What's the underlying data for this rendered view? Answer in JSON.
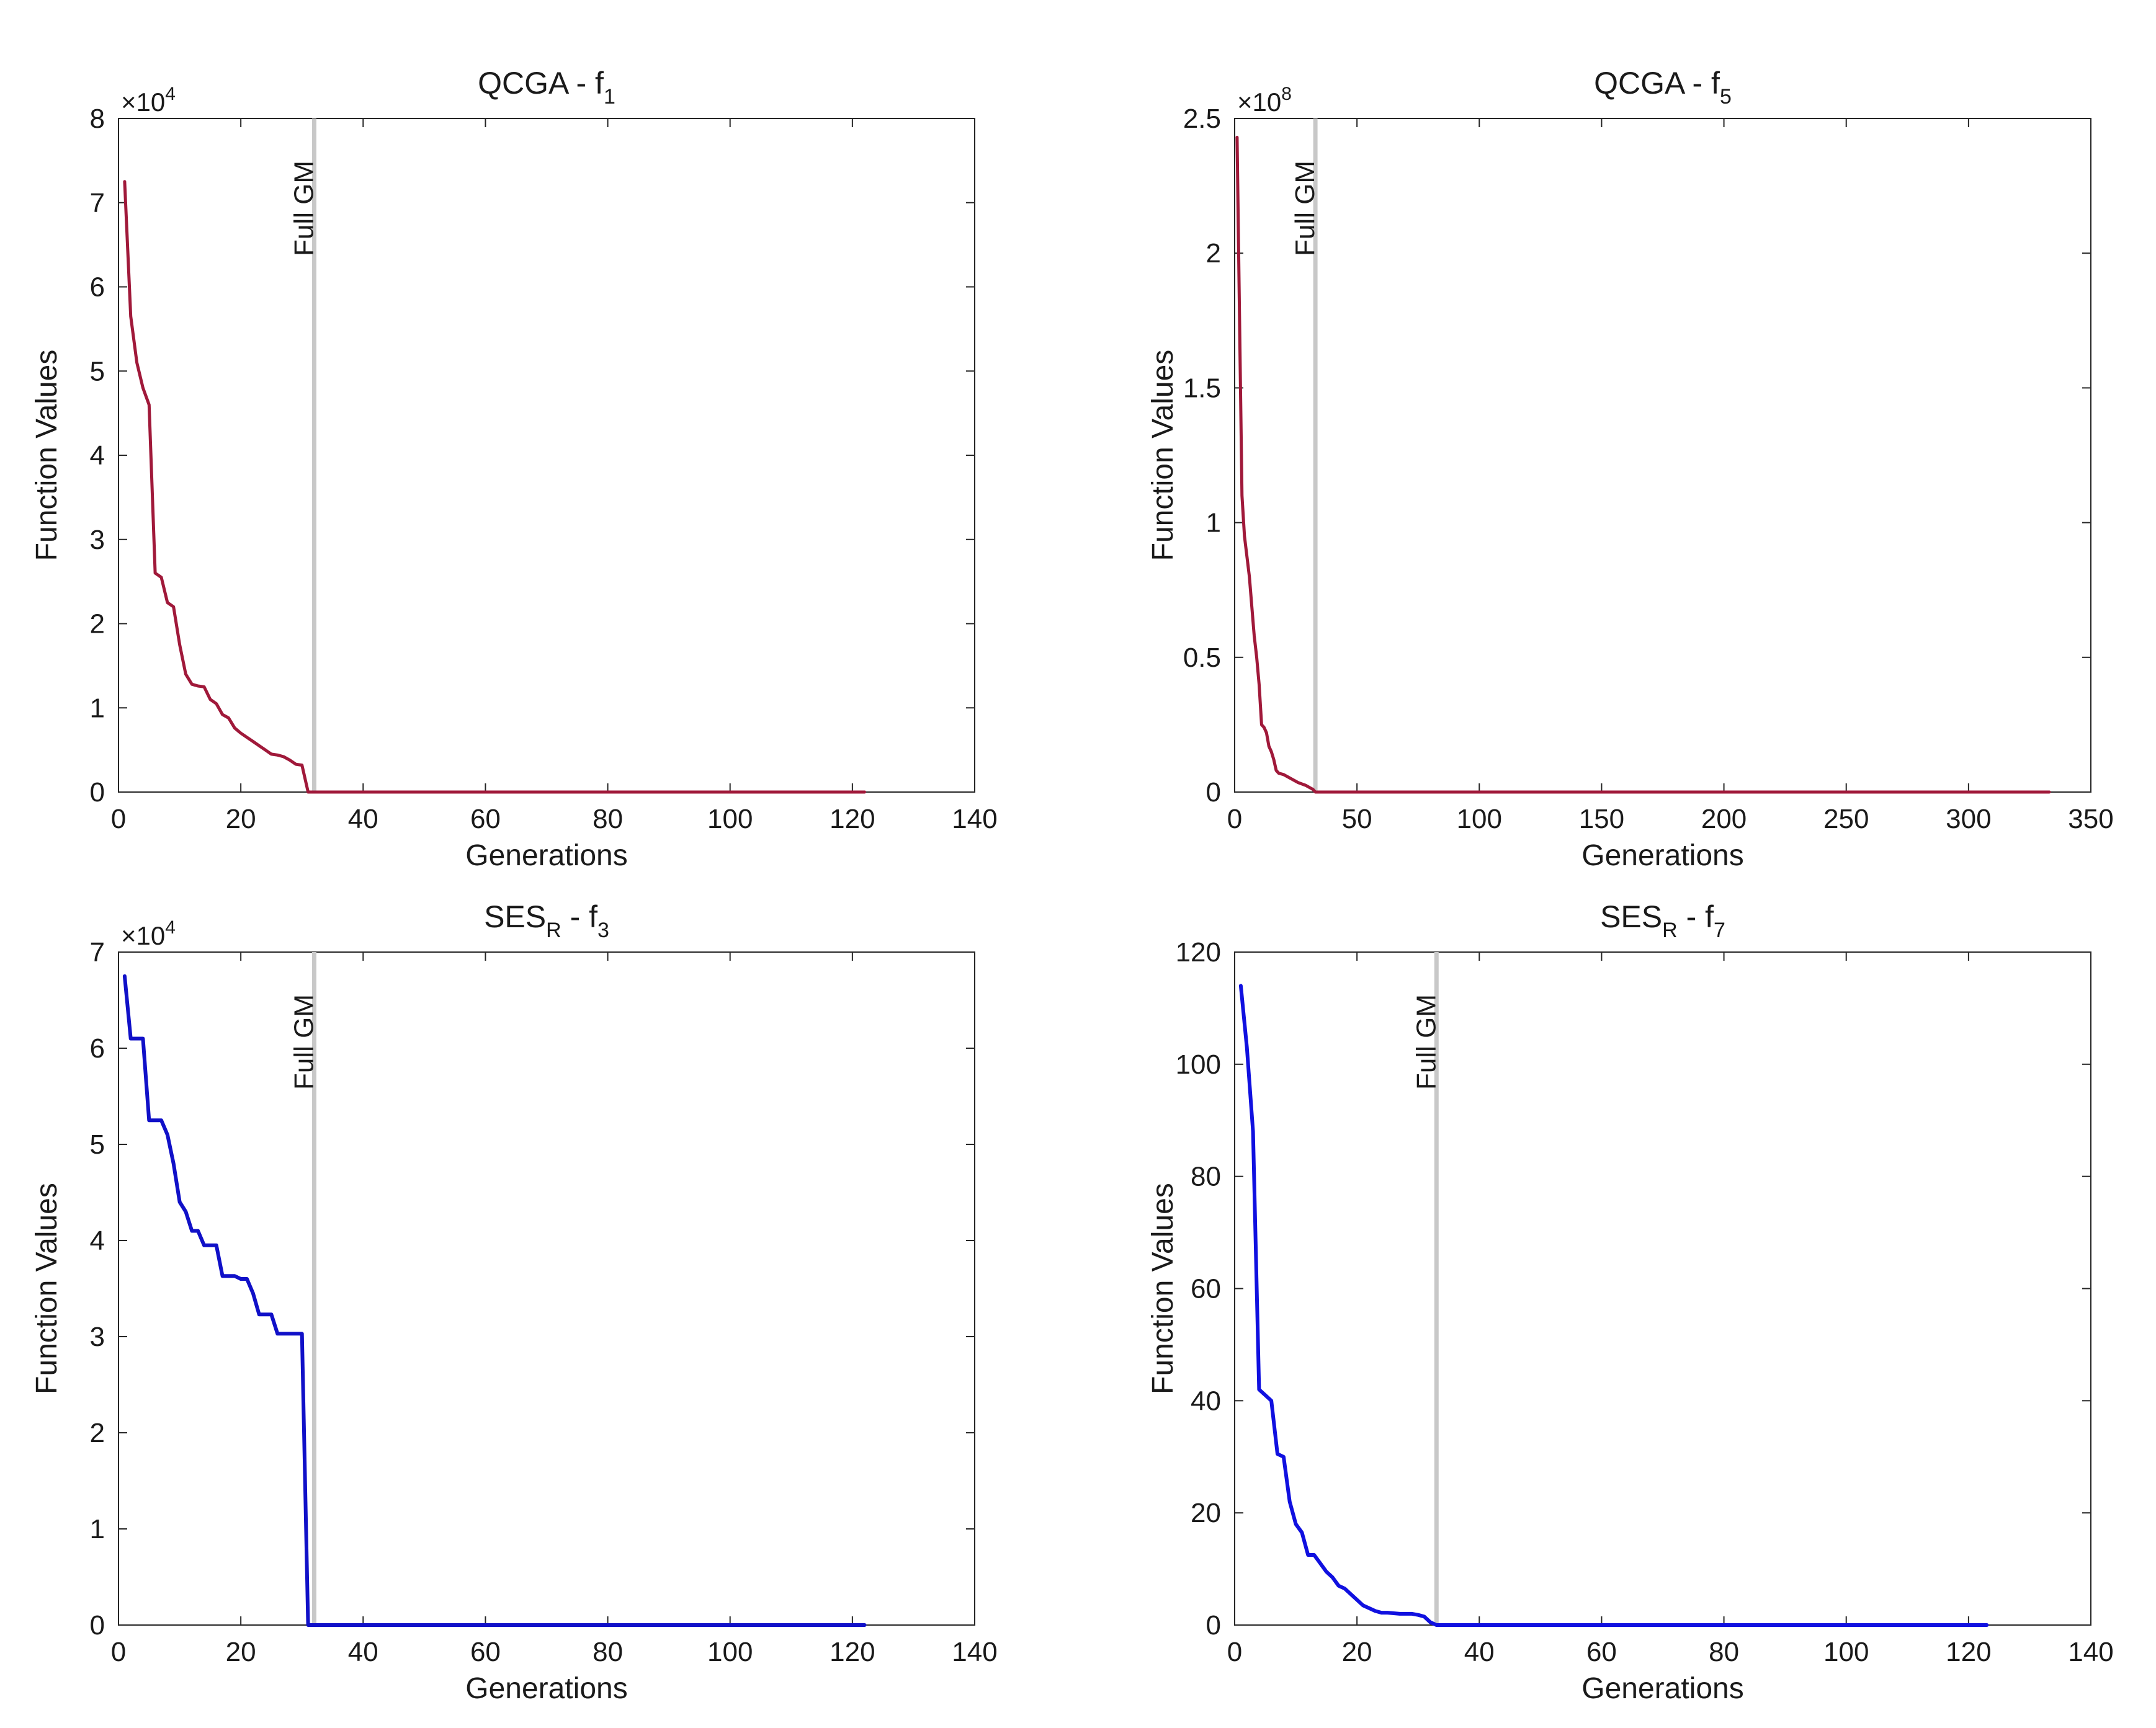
{
  "chart_data": [
    {
      "type": "line",
      "title": "QCGA - f",
      "title_subscript": "1",
      "xlabel": "Generations",
      "ylabel": "Function Values",
      "xlim": [
        0,
        140
      ],
      "ylim": [
        0,
        80000
      ],
      "xticks": [
        0,
        20,
        40,
        60,
        80,
        100,
        120,
        140
      ],
      "yticks": [
        0,
        10000,
        20000,
        30000,
        40000,
        50000,
        60000,
        70000,
        80000
      ],
      "ytick_labels": [
        "0",
        "1",
        "2",
        "3",
        "4",
        "5",
        "6",
        "7",
        "8"
      ],
      "y_exponent_label": "×10",
      "y_exponent": "4",
      "annotation": {
        "x": 32,
        "label": "Full GM",
        "color": "#c8c8c8"
      },
      "series": [
        {
          "name": "QCGA",
          "color": "#a0193a",
          "x": [
            1,
            2,
            3,
            4,
            5,
            6,
            7,
            8,
            9,
            10,
            11,
            12,
            13,
            14,
            15,
            16,
            17,
            18,
            19,
            20,
            21,
            22,
            23,
            24,
            25,
            26,
            27,
            28,
            29,
            30,
            31,
            32,
            40,
            60,
            80,
            100,
            122
          ],
          "values": [
            72500,
            56500,
            51000,
            48000,
            46000,
            26000,
            25500,
            22500,
            22000,
            17500,
            14000,
            12800,
            12600,
            12500,
            11000,
            10500,
            9200,
            8800,
            7600,
            7000,
            6500,
            6000,
            5500,
            5000,
            4500,
            4400,
            4200,
            3800,
            3300,
            3200,
            0,
            0,
            0,
            0,
            0,
            0,
            0
          ]
        }
      ]
    },
    {
      "type": "line",
      "title": "QCGA - f",
      "title_subscript": "5",
      "xlabel": "Generations",
      "ylabel": "Function Values",
      "xlim": [
        0,
        350
      ],
      "ylim": [
        0,
        250000000
      ],
      "xticks": [
        0,
        50,
        100,
        150,
        200,
        250,
        300,
        350
      ],
      "yticks": [
        0,
        50000000,
        100000000,
        150000000,
        200000000,
        250000000
      ],
      "ytick_labels": [
        "0",
        "0.5",
        "1",
        "1.5",
        "2",
        "2.5"
      ],
      "y_exponent_label": "×10",
      "y_exponent": "8",
      "annotation": {
        "x": 33,
        "label": "Full GM",
        "color": "#c8c8c8"
      },
      "series": [
        {
          "name": "QCGA",
          "color": "#a0193a",
          "x": [
            1,
            2,
            3,
            4,
            6,
            8,
            9,
            10,
            11,
            12,
            13,
            14,
            15,
            16,
            17,
            18,
            20,
            23,
            26,
            29,
            31,
            32,
            33,
            50,
            100,
            200,
            300,
            333
          ],
          "values": [
            243000000,
            175000000,
            110000000,
            95000000,
            80000000,
            58000000,
            50000000,
            40000000,
            25000000,
            24000000,
            22000000,
            17000000,
            15000000,
            12000000,
            8000000,
            7000000,
            6500000,
            5000000,
            3500000,
            2500000,
            1500000,
            1000000,
            0,
            0,
            0,
            0,
            0,
            0
          ]
        }
      ]
    },
    {
      "type": "line",
      "title": "SES",
      "title_subscript": "R",
      "title_suffix": " - f",
      "title_suffix_subscript": "3",
      "xlabel": "Generations",
      "ylabel": "Function Values",
      "xlim": [
        0,
        140
      ],
      "ylim": [
        0,
        70000
      ],
      "xticks": [
        0,
        20,
        40,
        60,
        80,
        100,
        120,
        140
      ],
      "yticks": [
        0,
        10000,
        20000,
        30000,
        40000,
        50000,
        60000,
        70000
      ],
      "ytick_labels": [
        "0",
        "1",
        "2",
        "3",
        "4",
        "5",
        "6",
        "7"
      ],
      "y_exponent_label": "×10",
      "y_exponent": "4",
      "annotation": {
        "x": 32,
        "label": "Full GM",
        "color": "#c8c8c8"
      },
      "series": [
        {
          "name": "SES_R",
          "color": "#1010c8",
          "x": [
            1,
            2,
            3,
            4,
            5,
            6,
            7,
            8,
            9,
            10,
            11,
            12,
            13,
            14,
            15,
            16,
            17,
            18,
            19,
            20,
            21,
            22,
            23,
            24,
            25,
            26,
            27,
            28,
            29,
            30,
            31,
            32,
            40,
            60,
            80,
            100,
            122
          ],
          "values": [
            67500,
            61000,
            61000,
            61000,
            52500,
            52500,
            52500,
            51000,
            48000,
            44000,
            43000,
            41000,
            41000,
            39500,
            39500,
            39500,
            36300,
            36300,
            36300,
            36000,
            36000,
            34500,
            32300,
            32300,
            32300,
            30300,
            30300,
            30300,
            30300,
            30300,
            0,
            0,
            0,
            0,
            0,
            0,
            0
          ]
        }
      ]
    },
    {
      "type": "line",
      "title": "SES",
      "title_subscript": "R",
      "title_suffix": " - f",
      "title_suffix_subscript": "7",
      "xlabel": "Generations",
      "ylabel": "Function Values",
      "xlim": [
        0,
        140
      ],
      "ylim": [
        0,
        120
      ],
      "xticks": [
        0,
        20,
        40,
        60,
        80,
        100,
        120,
        140
      ],
      "yticks": [
        0,
        20,
        40,
        60,
        80,
        100,
        120
      ],
      "ytick_labels": [
        "0",
        "20",
        "40",
        "60",
        "80",
        "100",
        "120"
      ],
      "annotation": {
        "x": 33,
        "label": "Full GM",
        "color": "#c8c8c8"
      },
      "series": [
        {
          "name": "SES_R",
          "color": "#1010e0",
          "x": [
            1,
            2,
            3,
            4,
            5,
            6,
            7,
            8,
            9,
            10,
            11,
            12,
            13,
            14,
            15,
            16,
            17,
            18,
            19,
            20,
            21,
            22,
            23,
            24,
            25,
            26,
            27,
            28,
            29,
            30,
            31,
            32,
            33,
            40,
            60,
            80,
            100,
            123
          ],
          "values": [
            114,
            103,
            88,
            42,
            41,
            40,
            30.5,
            30,
            22,
            18,
            16.5,
            12.5,
            12.5,
            11,
            9.5,
            8.5,
            7,
            6.5,
            5.5,
            4.5,
            3.5,
            3,
            2.5,
            2.2,
            2.2,
            2.1,
            2,
            2,
            2,
            1.8,
            1.5,
            0.5,
            0,
            0,
            0,
            0,
            0,
            0
          ]
        }
      ]
    }
  ]
}
